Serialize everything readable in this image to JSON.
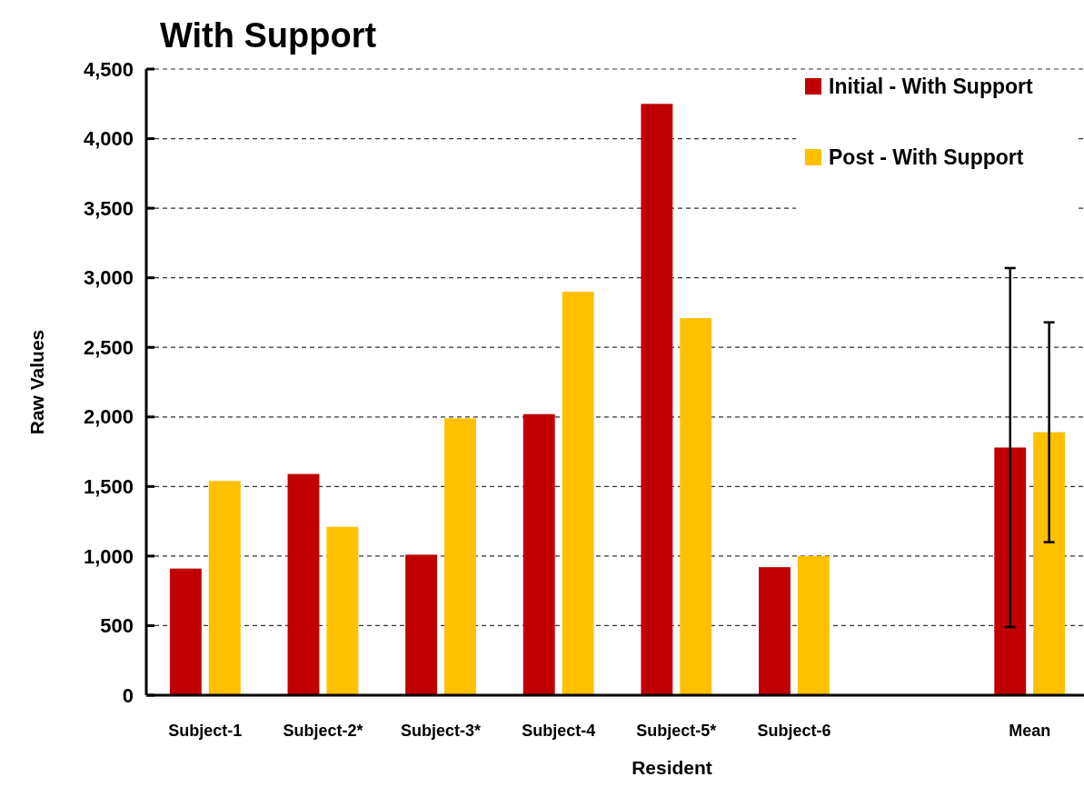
{
  "chart_data": {
    "type": "bar",
    "title": "With Support",
    "xlabel": "Resident",
    "ylabel": "Raw Values",
    "categories": [
      "Subject-1",
      "Subject-2*",
      "Subject-3*",
      "Subject-4",
      "Subject-5*",
      "Subject-6",
      null,
      "Mean"
    ],
    "series": [
      {
        "name": "Initial - With Support",
        "color": "#c00000",
        "values": [
          910,
          1590,
          1010,
          2020,
          4250,
          920,
          null,
          1780
        ],
        "errors": [
          null,
          null,
          null,
          null,
          null,
          null,
          null,
          1290
        ]
      },
      {
        "name": "Post - With Support",
        "color": "#ffc000",
        "values": [
          1540,
          1210,
          1990,
          2900,
          2710,
          1000,
          null,
          1890
        ],
        "errors": [
          null,
          null,
          null,
          null,
          null,
          null,
          null,
          790
        ]
      }
    ],
    "ylim": [
      0,
      4500
    ],
    "yticks": [
      {
        "value": 0,
        "label": "0"
      },
      {
        "value": 500,
        "label": "500"
      },
      {
        "value": 1000,
        "label": "1,000"
      },
      {
        "value": 1500,
        "label": "1,500"
      },
      {
        "value": 2000,
        "label": "2,000"
      },
      {
        "value": 2500,
        "label": "2,500"
      },
      {
        "value": 3000,
        "label": "3,000"
      },
      {
        "value": 3500,
        "label": "3,500"
      },
      {
        "value": 4000,
        "label": "4,000"
      },
      {
        "value": 4500,
        "label": "4,500"
      }
    ],
    "grid": "y",
    "line_style": "dashed",
    "legend": "top right"
  }
}
